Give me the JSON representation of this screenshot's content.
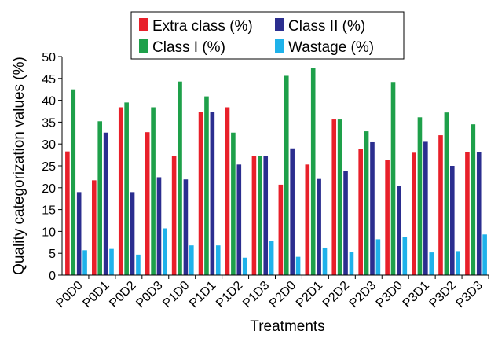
{
  "chart_data": {
    "type": "bar",
    "title": "",
    "xlabel": "Treatments",
    "ylabel": "Quality categorization values (%)",
    "ylim": [
      0,
      50
    ],
    "yticks": [
      0,
      5,
      10,
      15,
      20,
      25,
      30,
      35,
      40,
      45,
      50
    ],
    "grid": false,
    "legend_position": "top-center",
    "categories": [
      "P0D0",
      "P0D1",
      "P0D2",
      "P0D3",
      "P1D0",
      "P1D1",
      "P1D2",
      "P1D3",
      "P2D0",
      "P2D1",
      "P2D2",
      "P2D3",
      "P3D0",
      "P3D1",
      "P3D2",
      "P3D3"
    ],
    "series": [
      {
        "name": "Extra class (%)",
        "color": "#e8202a",
        "values": [
          28.3,
          21.7,
          38.4,
          32.7,
          27.3,
          37.4,
          38.4,
          27.3,
          20.7,
          25.3,
          35.6,
          28.8,
          26.4,
          28.0,
          32.0,
          28.1
        ]
      },
      {
        "name": "Class I (%)",
        "color": "#1ea04a",
        "values": [
          42.5,
          35.2,
          39.5,
          38.4,
          44.3,
          40.9,
          32.6,
          27.3,
          45.6,
          47.3,
          35.6,
          32.9,
          44.2,
          36.1,
          37.2,
          34.5
        ]
      },
      {
        "name": "Class II (%)",
        "color": "#2b2e8f",
        "values": [
          19.0,
          32.6,
          19.0,
          22.4,
          21.9,
          37.4,
          25.3,
          27.3,
          29.0,
          22.0,
          23.9,
          30.4,
          20.5,
          30.5,
          25.0,
          28.1
        ]
      },
      {
        "name": "Wastage (%)",
        "color": "#1fb2ea",
        "values": [
          5.7,
          6.0,
          4.7,
          10.7,
          6.8,
          6.8,
          4.0,
          7.8,
          4.2,
          6.3,
          5.3,
          8.2,
          8.8,
          5.2,
          5.5,
          9.3
        ]
      }
    ],
    "legend_order": [
      0,
      2,
      1,
      3
    ]
  }
}
